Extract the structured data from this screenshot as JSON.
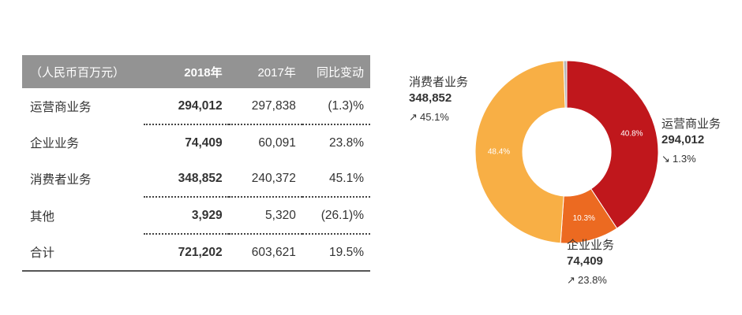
{
  "table": {
    "headers": [
      "（人民币百万元）",
      "2018年",
      "2017年",
      "同比变动"
    ],
    "rows": [
      {
        "name": "运营商业务",
        "v2018": "294,012",
        "v2017": "297,838",
        "yoy": "(1.3)%"
      },
      {
        "name": "企业业务",
        "v2018": "74,409",
        "v2017": "60,091",
        "yoy": "23.8%"
      },
      {
        "name": "消费者业务",
        "v2018": "348,852",
        "v2017": "240,372",
        "yoy": "45.1%"
      },
      {
        "name": "其他",
        "v2018": "3,929",
        "v2017": "5,320",
        "yoy": "(26.1)%"
      },
      {
        "name": "合计",
        "v2018": "721,202",
        "v2017": "603,621",
        "yoy": "19.5%"
      }
    ]
  },
  "chart_data": {
    "type": "pie",
    "donut": true,
    "slices": [
      {
        "name": "运营商业务",
        "value": 294012,
        "pct_label": "40.8%",
        "color": "#c0171c"
      },
      {
        "name": "企业业务",
        "value": 74409,
        "pct_label": "10.3%",
        "color": "#ec6a21"
      },
      {
        "name": "消费者业务",
        "value": 348852,
        "pct_label": "48.4%",
        "color": "#f8af45"
      },
      {
        "name": "其他",
        "value": 3929,
        "pct_label": "",
        "color": "#b5b5b5"
      }
    ]
  },
  "callouts": {
    "carrier": {
      "name": "运营商业务",
      "value": "294,012",
      "change": "1.3%",
      "arrow": "↘"
    },
    "enterprise": {
      "name": "企业业务",
      "value": "74,409",
      "change": "23.8%",
      "arrow": "↗"
    },
    "consumer": {
      "name": "消费者业务",
      "value": "348,852",
      "change": "45.1%",
      "arrow": "↗"
    }
  }
}
